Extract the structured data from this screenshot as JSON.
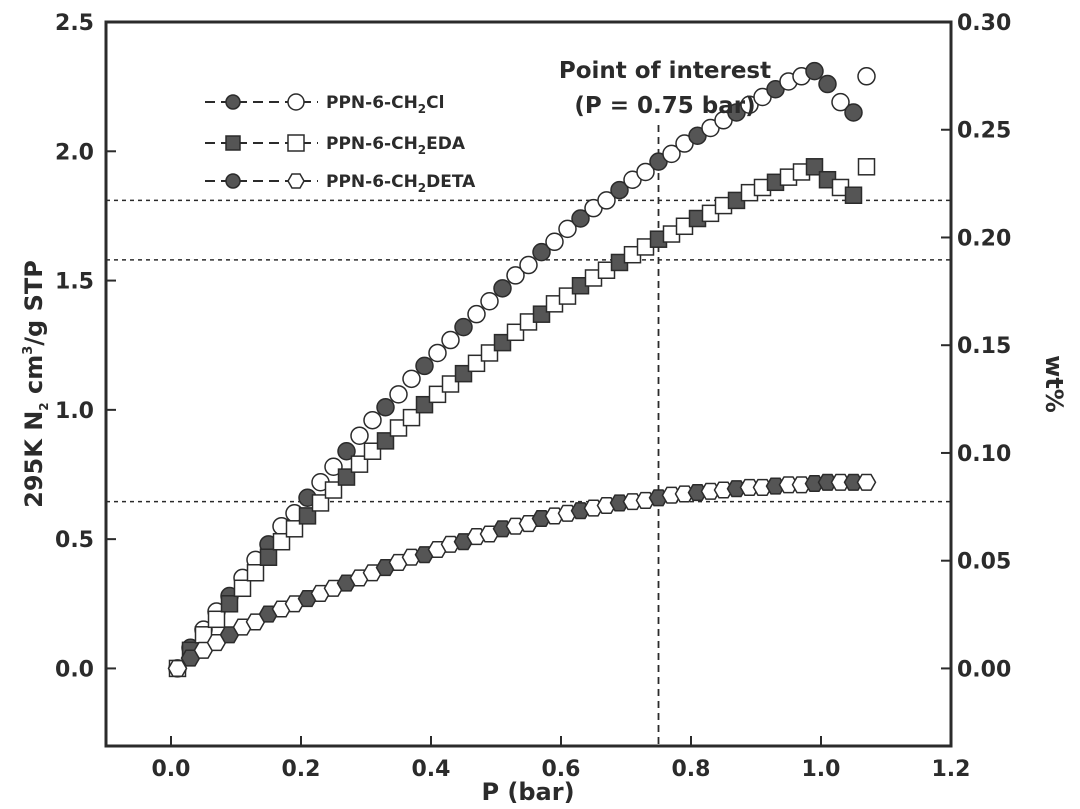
{
  "chart_data": {
    "type": "scatter",
    "xlabel": "P (bar)",
    "ylabel_left": {
      "prefix": "295K N",
      "sub": "2",
      "middle": " cm",
      "sup": "3",
      "suffix": "/g STP"
    },
    "ylabel_right": "wt%",
    "xlim": [
      -0.1,
      1.2
    ],
    "ylim_left": [
      -0.3,
      2.5
    ],
    "ylim_right": [
      -0.036,
      0.3
    ],
    "x_ticks": [
      "0.0",
      "0.2",
      "0.4",
      "0.6",
      "0.8",
      "1.0",
      "1.2"
    ],
    "y_ticks_left": [
      "0.0",
      "0.5",
      "1.0",
      "1.5",
      "2.0",
      "2.5"
    ],
    "y_ticks_right": [
      "0.00",
      "0.05",
      "0.10",
      "0.15",
      "0.20",
      "0.25",
      "0.30"
    ],
    "annotation": {
      "line1": "Point of interest",
      "line2": "(P = 0.75 bar)",
      "x": 0.75
    },
    "reference_lines_left": [
      1.81,
      1.58,
      0.645
    ],
    "series": [
      {
        "name": {
          "prefix": "PPN-6-CH",
          "sub": "2",
          "suffix": "Cl"
        },
        "marker": "circle",
        "x": [
          0.01,
          0.03,
          0.05,
          0.07,
          0.09,
          0.11,
          0.13,
          0.15,
          0.17,
          0.19,
          0.21,
          0.23,
          0.25,
          0.27,
          0.29,
          0.31,
          0.33,
          0.35,
          0.37,
          0.39,
          0.41,
          0.43,
          0.45,
          0.47,
          0.49,
          0.51,
          0.53,
          0.55,
          0.57,
          0.59,
          0.61,
          0.63,
          0.65,
          0.67,
          0.69,
          0.71,
          0.73,
          0.75,
          0.77,
          0.79,
          0.81,
          0.83,
          0.85,
          0.87,
          0.89,
          0.91,
          0.93,
          0.95,
          0.97,
          0.99,
          1.01,
          1.03,
          1.05,
          1.07
        ],
        "y": [
          0.0,
          0.08,
          0.15,
          0.22,
          0.28,
          0.35,
          0.42,
          0.48,
          0.55,
          0.6,
          0.66,
          0.72,
          0.78,
          0.84,
          0.9,
          0.96,
          1.01,
          1.06,
          1.12,
          1.17,
          1.22,
          1.27,
          1.32,
          1.37,
          1.42,
          1.47,
          1.52,
          1.56,
          1.61,
          1.65,
          1.7,
          1.74,
          1.78,
          1.81,
          1.85,
          1.89,
          1.92,
          1.96,
          1.99,
          2.03,
          2.06,
          2.09,
          2.12,
          2.15,
          2.18,
          2.21,
          2.24,
          2.27,
          2.29,
          2.31,
          2.26,
          2.19,
          2.15,
          2.29
        ]
      },
      {
        "name": {
          "prefix": "PPN-6-CH",
          "sub": "2",
          "suffix": "EDA"
        },
        "marker": "square",
        "x": [
          0.01,
          0.03,
          0.05,
          0.07,
          0.09,
          0.11,
          0.13,
          0.15,
          0.17,
          0.19,
          0.21,
          0.23,
          0.25,
          0.27,
          0.29,
          0.31,
          0.33,
          0.35,
          0.37,
          0.39,
          0.41,
          0.43,
          0.45,
          0.47,
          0.49,
          0.51,
          0.53,
          0.55,
          0.57,
          0.59,
          0.61,
          0.63,
          0.65,
          0.67,
          0.69,
          0.71,
          0.73,
          0.75,
          0.77,
          0.79,
          0.81,
          0.83,
          0.85,
          0.87,
          0.89,
          0.91,
          0.93,
          0.95,
          0.97,
          0.99,
          1.01,
          1.03,
          1.05,
          1.07
        ],
        "y": [
          0.0,
          0.07,
          0.13,
          0.19,
          0.25,
          0.31,
          0.37,
          0.43,
          0.49,
          0.54,
          0.59,
          0.64,
          0.69,
          0.74,
          0.79,
          0.84,
          0.88,
          0.93,
          0.97,
          1.02,
          1.06,
          1.1,
          1.14,
          1.18,
          1.22,
          1.26,
          1.3,
          1.34,
          1.37,
          1.41,
          1.44,
          1.48,
          1.51,
          1.54,
          1.57,
          1.6,
          1.63,
          1.66,
          1.68,
          1.71,
          1.74,
          1.76,
          1.79,
          1.81,
          1.84,
          1.86,
          1.88,
          1.9,
          1.92,
          1.94,
          1.89,
          1.86,
          1.83,
          1.94
        ]
      },
      {
        "name": {
          "prefix": "PPN-6-CH",
          "sub": "2",
          "suffix": "DETA"
        },
        "marker": "hexagon",
        "x": [
          0.01,
          0.03,
          0.05,
          0.07,
          0.09,
          0.11,
          0.13,
          0.15,
          0.17,
          0.19,
          0.21,
          0.23,
          0.25,
          0.27,
          0.29,
          0.31,
          0.33,
          0.35,
          0.37,
          0.39,
          0.41,
          0.43,
          0.45,
          0.47,
          0.49,
          0.51,
          0.53,
          0.55,
          0.57,
          0.59,
          0.61,
          0.63,
          0.65,
          0.67,
          0.69,
          0.71,
          0.73,
          0.75,
          0.77,
          0.79,
          0.81,
          0.83,
          0.85,
          0.87,
          0.89,
          0.91,
          0.93,
          0.95,
          0.97,
          0.99,
          1.01,
          1.03,
          1.05,
          1.07
        ],
        "y": [
          0.0,
          0.04,
          0.07,
          0.1,
          0.13,
          0.16,
          0.18,
          0.21,
          0.23,
          0.25,
          0.27,
          0.29,
          0.31,
          0.33,
          0.35,
          0.37,
          0.39,
          0.41,
          0.43,
          0.44,
          0.46,
          0.48,
          0.49,
          0.51,
          0.52,
          0.54,
          0.55,
          0.56,
          0.58,
          0.59,
          0.6,
          0.61,
          0.62,
          0.63,
          0.64,
          0.645,
          0.65,
          0.66,
          0.67,
          0.675,
          0.68,
          0.685,
          0.69,
          0.695,
          0.7,
          0.7,
          0.705,
          0.71,
          0.71,
          0.715,
          0.72,
          0.72,
          0.72,
          0.72
        ]
      }
    ],
    "colors": {
      "ink": "#2b2b2b",
      "filled": "#555555",
      "background": "#ffffff"
    }
  }
}
